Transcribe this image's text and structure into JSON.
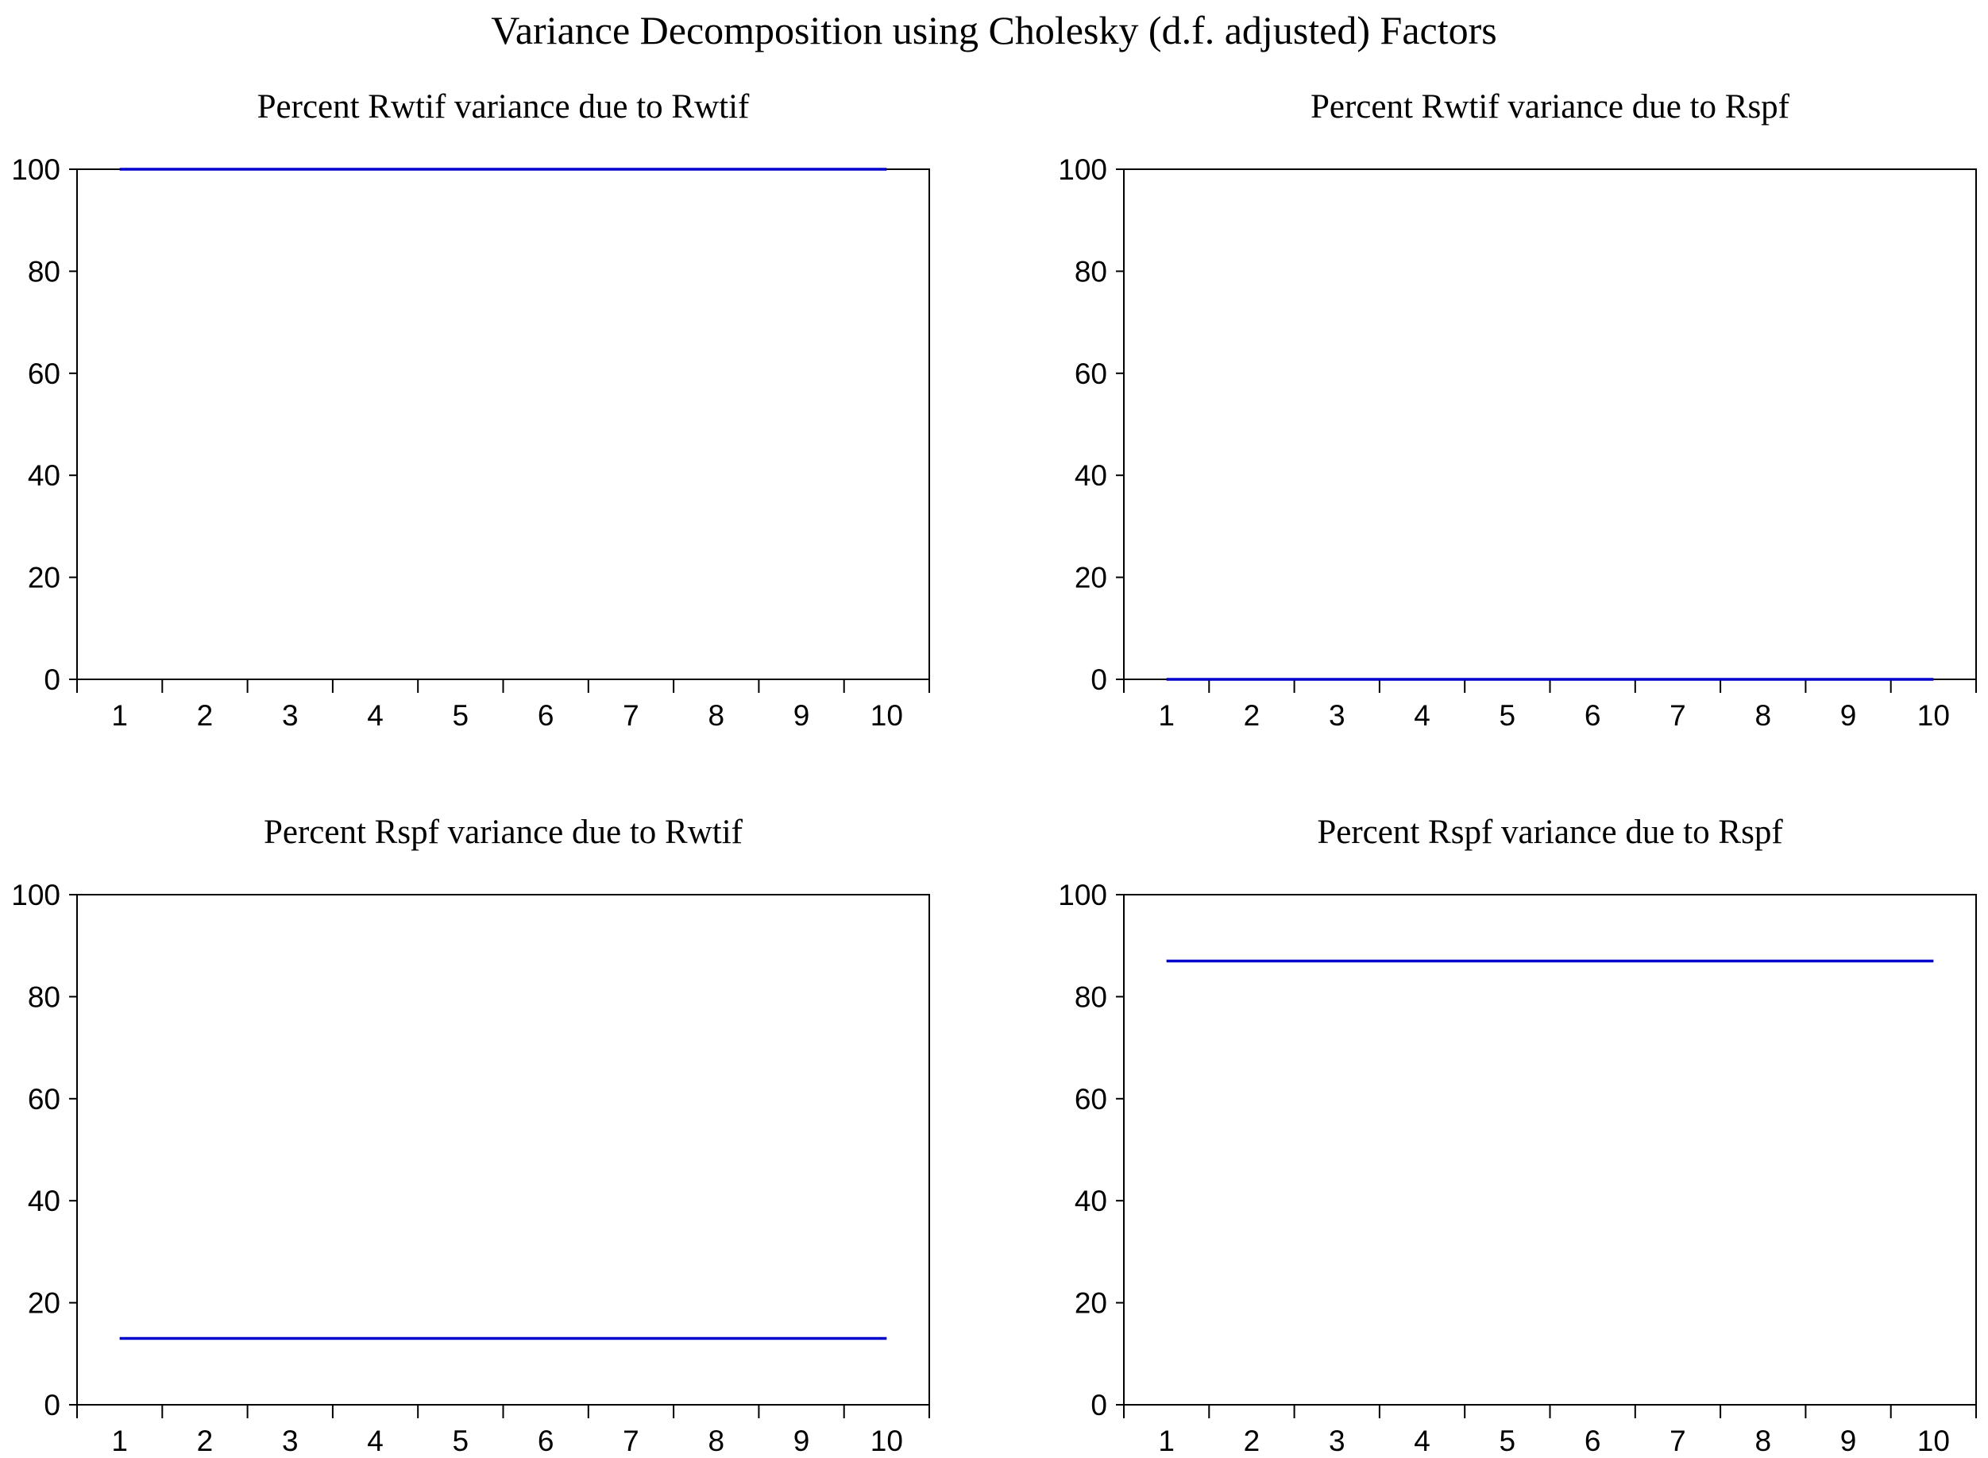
{
  "main_title": "Variance Decomposition using Cholesky (d.f. adjusted) Factors",
  "colors": {
    "series_line": "#0000cc",
    "axis": "#000000",
    "background": "#ffffff"
  },
  "chart_data": [
    {
      "type": "line",
      "title": "Percent Rwtif variance due to Rwtif",
      "x": [
        1,
        2,
        3,
        4,
        5,
        6,
        7,
        8,
        9,
        10
      ],
      "series": [
        {
          "values": [
            100,
            100,
            100,
            100,
            100,
            100,
            100,
            100,
            100,
            100
          ]
        }
      ],
      "x_ticks": [
        "1",
        "2",
        "3",
        "4",
        "5",
        "6",
        "7",
        "8",
        "9",
        "10"
      ],
      "y_ticks": [
        "0",
        "20",
        "40",
        "60",
        "80",
        "100"
      ],
      "ylim": [
        0,
        100
      ],
      "xlim": [
        0.5,
        10.5
      ],
      "grid": false
    },
    {
      "type": "line",
      "title": "Percent Rwtif variance due to Rspf",
      "x": [
        1,
        2,
        3,
        4,
        5,
        6,
        7,
        8,
        9,
        10
      ],
      "series": [
        {
          "values": [
            0,
            0,
            0,
            0,
            0,
            0,
            0,
            0,
            0,
            0
          ]
        }
      ],
      "x_ticks": [
        "1",
        "2",
        "3",
        "4",
        "5",
        "6",
        "7",
        "8",
        "9",
        "10"
      ],
      "y_ticks": [
        "0",
        "20",
        "40",
        "60",
        "80",
        "100"
      ],
      "ylim": [
        0,
        100
      ],
      "xlim": [
        0.5,
        10.5
      ],
      "grid": false
    },
    {
      "type": "line",
      "title": "Percent Rspf variance due to Rwtif",
      "x": [
        1,
        2,
        3,
        4,
        5,
        6,
        7,
        8,
        9,
        10
      ],
      "series": [
        {
          "values": [
            13,
            13,
            13,
            13,
            13,
            13,
            13,
            13,
            13,
            13
          ]
        }
      ],
      "x_ticks": [
        "1",
        "2",
        "3",
        "4",
        "5",
        "6",
        "7",
        "8",
        "9",
        "10"
      ],
      "y_ticks": [
        "0",
        "20",
        "40",
        "60",
        "80",
        "100"
      ],
      "ylim": [
        0,
        100
      ],
      "xlim": [
        0.5,
        10.5
      ],
      "grid": false
    },
    {
      "type": "line",
      "title": "Percent Rspf variance due to Rspf",
      "x": [
        1,
        2,
        3,
        4,
        5,
        6,
        7,
        8,
        9,
        10
      ],
      "series": [
        {
          "values": [
            87,
            87,
            87,
            87,
            87,
            87,
            87,
            87,
            87,
            87
          ]
        }
      ],
      "x_ticks": [
        "1",
        "2",
        "3",
        "4",
        "5",
        "6",
        "7",
        "8",
        "9",
        "10"
      ],
      "y_ticks": [
        "0",
        "20",
        "40",
        "60",
        "80",
        "100"
      ],
      "ylim": [
        0,
        100
      ],
      "xlim": [
        0.5,
        10.5
      ],
      "grid": false
    }
  ]
}
